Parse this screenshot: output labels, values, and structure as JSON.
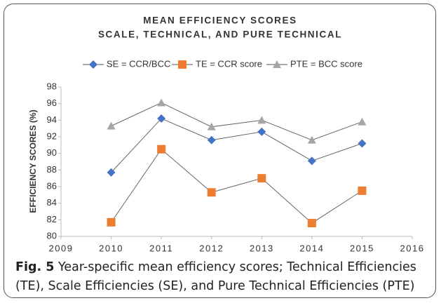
{
  "chart_data": {
    "type": "line",
    "title": "MEAN EFFICIENCY SCORES",
    "subtitle": "SCALE, TECHNICAL, AND PURE TECHNICAL",
    "y_label": "EFFICIENCY SCORES (%)",
    "x": [
      2010,
      2011,
      2012,
      2013,
      2014,
      2015
    ],
    "series": [
      {
        "name": "SE = CCR/BCC",
        "color": "#4472c4",
        "marker": "diamond",
        "values": [
          87.7,
          94.2,
          91.6,
          92.6,
          89.1,
          91.2
        ]
      },
      {
        "name": "TE = CCR score",
        "color": "#ed7d31",
        "marker": "square",
        "values": [
          81.7,
          90.5,
          85.3,
          87.0,
          81.6,
          85.5
        ]
      },
      {
        "name": "PTE = BCC score",
        "color": "#a5a5a5",
        "marker": "triangle",
        "values": [
          93.3,
          96.1,
          93.2,
          94.0,
          91.6,
          93.8
        ]
      }
    ],
    "xlim": [
      2009,
      2016
    ],
    "xticks": [
      2009,
      2010,
      2011,
      2012,
      2013,
      2014,
      2015,
      2016
    ],
    "ylim": [
      80,
      98
    ],
    "yticks": [
      80,
      82,
      84,
      86,
      88,
      90,
      92,
      94,
      96,
      98
    ],
    "legend": "top"
  },
  "caption": {
    "label": "Fig. 5",
    "text": "Year-specific mean efficiency scores; Technical Efficiencies (TE), Scale Efficiencies (SE), and Pure Technical Efficiencies (PTE)"
  }
}
